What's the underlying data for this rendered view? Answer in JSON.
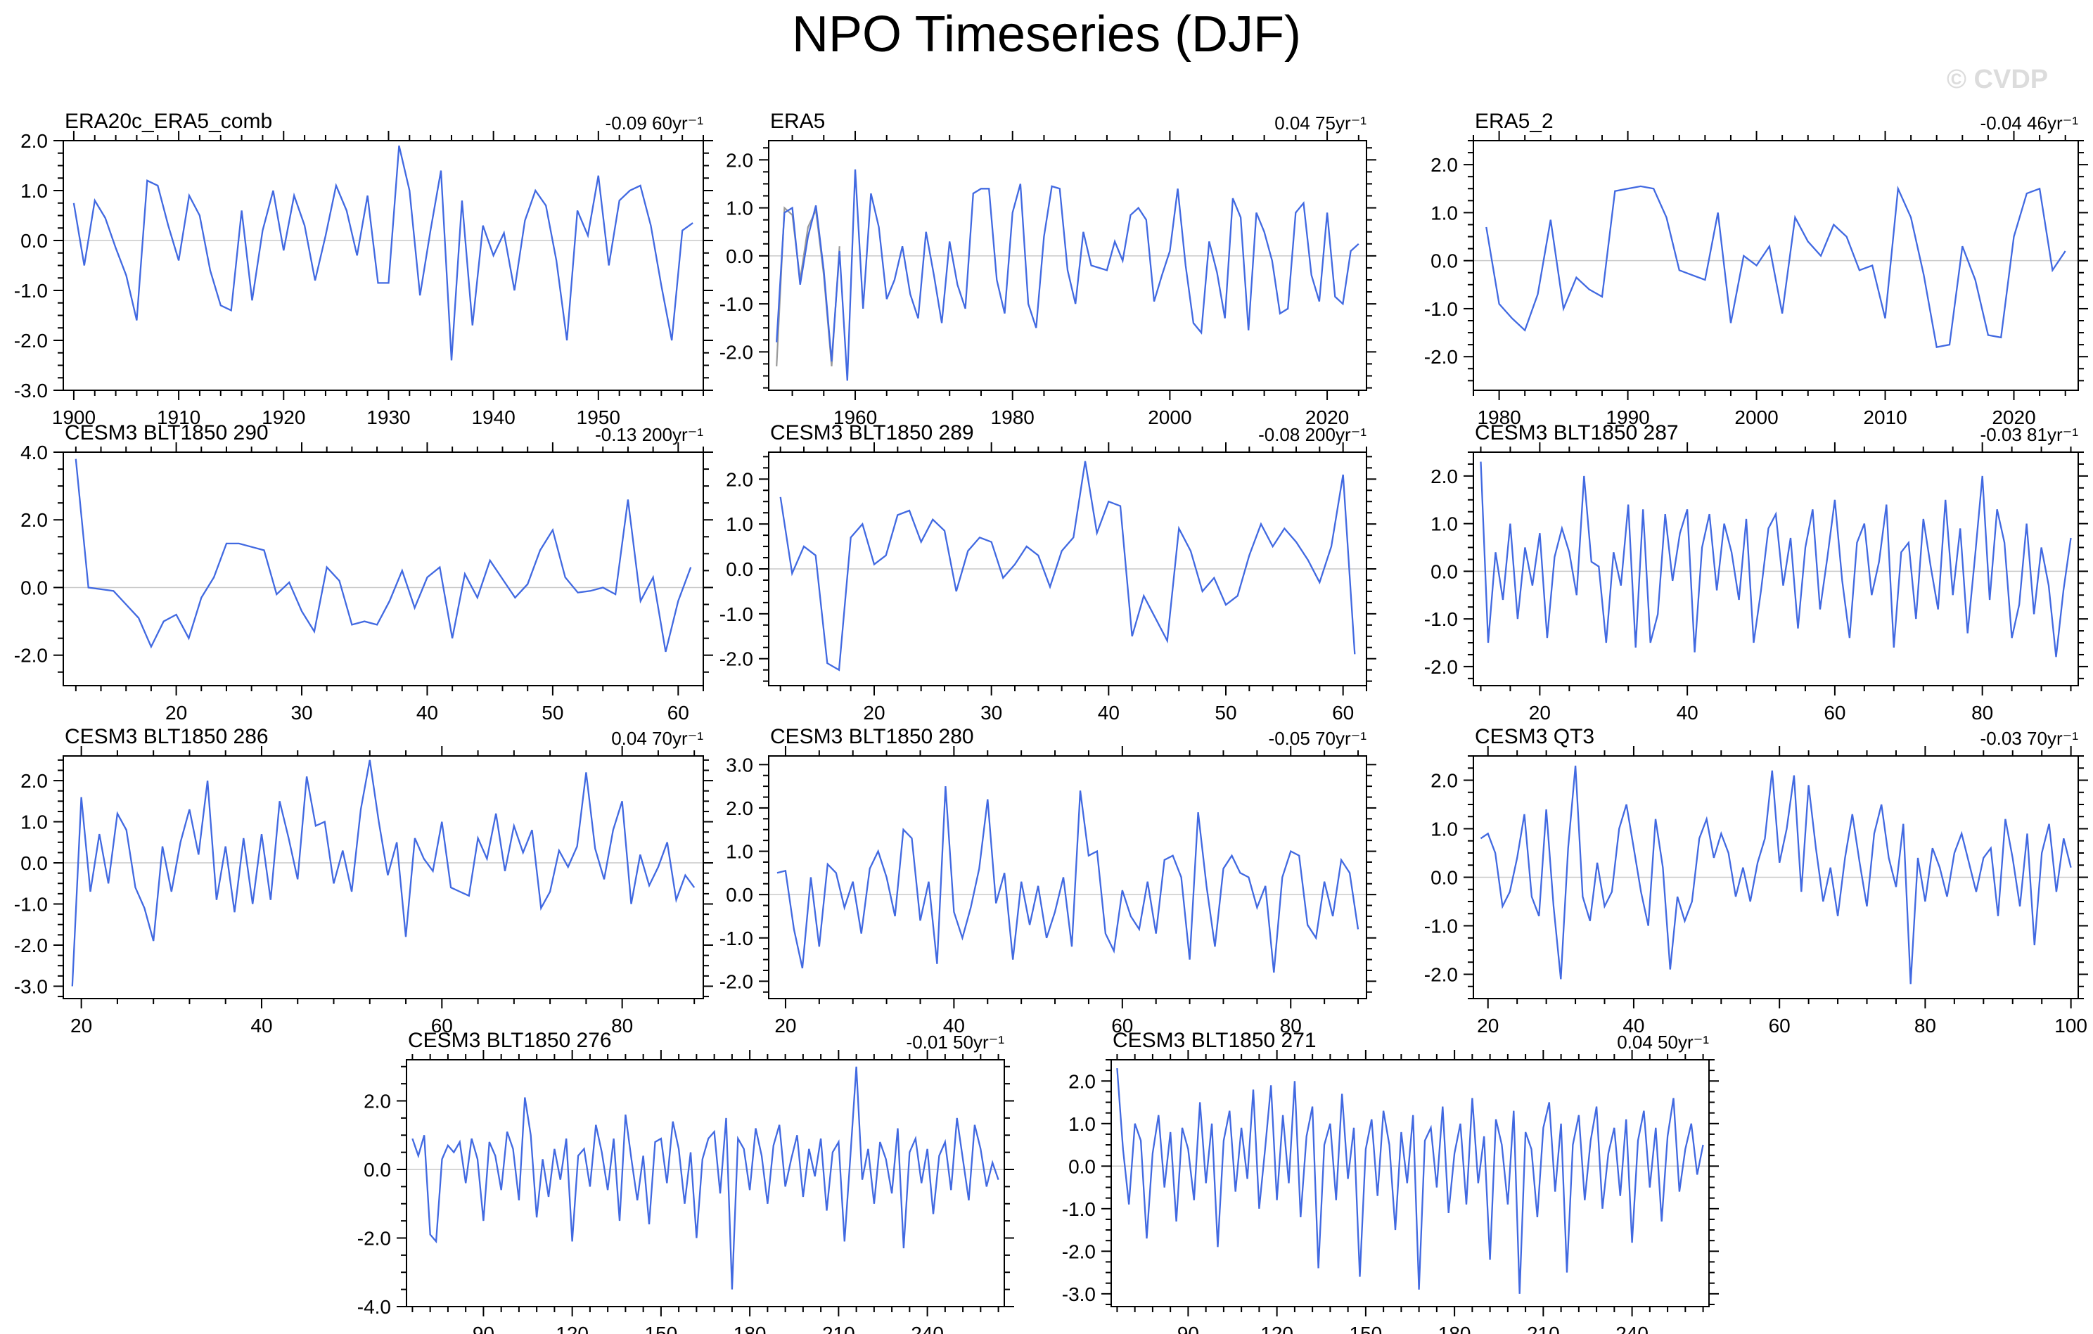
{
  "page": {
    "title": "NPO Timeseries (DJF)",
    "watermark": "© CVDP"
  },
  "colors": {
    "line": "#4169e1",
    "secondary_line": "#9a9a9a",
    "zero_line": "#c9c9c9",
    "frame": "#000000",
    "watermark": "#dcdcdc",
    "background": "#ffffff"
  },
  "chart_data": [
    {
      "type": "line",
      "title": "ERA20c_ERA5_comb",
      "stat": "-0.09 60yr⁻¹",
      "grid": {
        "row": 1,
        "col": 1
      },
      "x_start": 1900,
      "x_step": 1,
      "xlim": [
        1899,
        1960
      ],
      "ylim": [
        -3.0,
        2.0
      ],
      "x_ticks": [
        1900,
        1910,
        1920,
        1930,
        1940,
        1950
      ],
      "x_minor_step": 2,
      "y_ticks": [
        2.0,
        1.0,
        0.0,
        -1.0,
        -2.0,
        -3.0
      ],
      "y_minor_step": 0.25,
      "values": [
        0.75,
        -0.5,
        0.8,
        0.45,
        -0.15,
        -0.7,
        -1.6,
        1.2,
        1.1,
        0.3,
        -0.4,
        0.9,
        0.5,
        -0.6,
        -1.3,
        -1.4,
        0.6,
        -1.2,
        0.2,
        1.0,
        -0.2,
        0.9,
        0.3,
        -0.8,
        0.1,
        1.1,
        0.6,
        -0.3,
        0.9,
        -0.85,
        -0.85,
        1.9,
        1.0,
        -1.1,
        0.2,
        1.4,
        -2.4,
        0.8,
        -1.7,
        0.3,
        -0.3,
        0.15,
        -1.0,
        0.4,
        1.0,
        0.7,
        -0.4,
        -2.0,
        0.6,
        0.1,
        1.3,
        -0.5,
        0.8,
        1.0,
        1.1,
        0.3,
        -0.9,
        -2.0,
        0.2,
        0.35
      ]
    },
    {
      "type": "line",
      "title": "ERA5",
      "stat": "0.04 75yr⁻¹",
      "grid": {
        "row": 1,
        "col": 2
      },
      "x_start": 1950,
      "x_step": 1,
      "xlim": [
        1949,
        2025
      ],
      "ylim": [
        -2.8,
        2.4
      ],
      "x_ticks": [
        1960,
        1980,
        2000,
        2020
      ],
      "x_minor_step": 4,
      "y_ticks": [
        2.0,
        1.0,
        0.0,
        -1.0,
        -2.0
      ],
      "y_minor_step": 0.25,
      "values": [
        -1.8,
        0.9,
        1.0,
        -0.6,
        0.4,
        1.05,
        -0.3,
        -2.2,
        0.1,
        -2.6,
        1.8,
        -1.1,
        1.3,
        0.6,
        -0.9,
        -0.5,
        0.2,
        -0.8,
        -1.3,
        0.5,
        -0.4,
        -1.4,
        0.3,
        -0.6,
        -1.1,
        1.3,
        1.4,
        1.4,
        -0.5,
        -1.2,
        0.9,
        1.5,
        -1.0,
        -1.5,
        0.4,
        1.45,
        1.4,
        -0.3,
        -1.0,
        0.5,
        -0.2,
        -0.25,
        -0.3,
        0.3,
        -0.1,
        0.85,
        1.0,
        0.75,
        -0.95,
        -0.4,
        0.1,
        1.4,
        -0.2,
        -1.4,
        -1.6,
        0.3,
        -0.35,
        -1.3,
        1.2,
        0.8,
        -1.55,
        0.9,
        0.5,
        -0.1,
        -1.2,
        -1.1,
        0.9,
        1.1,
        -0.4,
        -0.95,
        0.9,
        -0.85,
        -1.0,
        0.1,
        0.25
      ],
      "secondary": {
        "x_start": 1950,
        "x_step": 1,
        "values": [
          -2.3,
          1.0,
          0.85,
          -0.5,
          0.6,
          0.95,
          -0.4,
          -2.3,
          0.2
        ]
      }
    },
    {
      "type": "line",
      "title": "ERA5_2",
      "stat": "-0.04 46yr⁻¹",
      "grid": {
        "row": 1,
        "col": 3
      },
      "x_start": 1979,
      "x_step": 1,
      "xlim": [
        1978,
        2025
      ],
      "ylim": [
        -2.7,
        2.5
      ],
      "x_ticks": [
        1980,
        1990,
        2000,
        2010,
        2020
      ],
      "x_minor_step": 2,
      "y_ticks": [
        2.0,
        1.0,
        0.0,
        -1.0,
        -2.0
      ],
      "y_minor_step": 0.25,
      "values": [
        0.7,
        -0.9,
        -1.2,
        -1.45,
        -0.7,
        0.85,
        -1.0,
        -0.35,
        -0.6,
        -0.75,
        1.45,
        1.5,
        1.55,
        1.5,
        0.9,
        -0.2,
        -0.3,
        -0.4,
        1.0,
        -1.3,
        0.1,
        -0.1,
        0.3,
        -1.1,
        0.9,
        0.4,
        0.1,
        0.75,
        0.5,
        -0.2,
        -0.1,
        -1.2,
        1.5,
        0.9,
        -0.3,
        -1.8,
        -1.75,
        0.3,
        -0.4,
        -1.55,
        -1.6,
        0.5,
        1.4,
        1.5,
        -0.2,
        0.2
      ]
    },
    {
      "type": "line",
      "title": "CESM3 BLT1850 290",
      "stat": "-0.13 200yr⁻¹",
      "grid": {
        "row": 2,
        "col": 1
      },
      "x_start": 12,
      "x_step": 1,
      "xlim": [
        11,
        62
      ],
      "ylim": [
        -2.9,
        4.0
      ],
      "x_ticks": [
        20,
        30,
        40,
        50,
        60
      ],
      "x_minor_step": 2,
      "y_ticks": [
        4.0,
        2.0,
        0.0,
        -2.0
      ],
      "y_minor_step": 0.5,
      "values": [
        3.8,
        0.0,
        -0.05,
        -0.1,
        -0.5,
        -0.9,
        -1.75,
        -1.0,
        -0.8,
        -1.5,
        -0.3,
        0.3,
        1.3,
        1.3,
        1.2,
        1.1,
        -0.2,
        0.15,
        -0.7,
        -1.3,
        0.6,
        0.2,
        -1.1,
        -1.0,
        -1.1,
        -0.4,
        0.5,
        -0.6,
        0.3,
        0.6,
        -1.5,
        0.4,
        -0.3,
        0.8,
        0.25,
        -0.3,
        0.1,
        1.1,
        1.7,
        0.3,
        -0.15,
        -0.1,
        0.0,
        -0.2,
        2.6,
        -0.4,
        0.3,
        -1.9,
        -0.4,
        0.6
      ]
    },
    {
      "type": "line",
      "title": "CESM3 BLT1850 289",
      "stat": "-0.08 200yr⁻¹",
      "grid": {
        "row": 2,
        "col": 2
      },
      "x_start": 12,
      "x_step": 1,
      "xlim": [
        11,
        62
      ],
      "ylim": [
        -2.6,
        2.6
      ],
      "x_ticks": [
        20,
        30,
        40,
        50,
        60
      ],
      "x_minor_step": 2,
      "y_ticks": [
        2.0,
        1.0,
        0.0,
        -1.0,
        -2.0
      ],
      "y_minor_step": 0.25,
      "values": [
        1.6,
        -0.1,
        0.5,
        0.3,
        -2.1,
        -2.25,
        0.7,
        1.0,
        0.1,
        0.3,
        1.2,
        1.3,
        0.6,
        1.1,
        0.85,
        -0.5,
        0.4,
        0.7,
        0.6,
        -0.2,
        0.1,
        0.5,
        0.3,
        -0.4,
        0.4,
        0.7,
        2.4,
        0.8,
        1.5,
        1.4,
        -1.5,
        -0.6,
        -1.1,
        -1.6,
        0.9,
        0.4,
        -0.5,
        -0.2,
        -0.8,
        -0.6,
        0.3,
        1.0,
        0.5,
        0.9,
        0.6,
        0.2,
        -0.3,
        0.5,
        2.1,
        -1.9
      ]
    },
    {
      "type": "line",
      "title": "CESM3 BLT1850 287",
      "stat": "-0.03 81yr⁻¹",
      "grid": {
        "row": 2,
        "col": 3
      },
      "x_start": 12,
      "x_step": 1,
      "xlim": [
        11,
        93
      ],
      "ylim": [
        -2.4,
        2.5
      ],
      "x_ticks": [
        20,
        40,
        60,
        80
      ],
      "x_minor_step": 4,
      "y_ticks": [
        2.0,
        1.0,
        0.0,
        -1.0,
        -2.0
      ],
      "y_minor_step": 0.25,
      "values": [
        2.3,
        -1.5,
        0.4,
        -0.6,
        1.0,
        -1.0,
        0.5,
        -0.3,
        0.8,
        -1.4,
        0.3,
        0.9,
        0.4,
        -0.5,
        2.0,
        0.2,
        0.1,
        -1.5,
        0.4,
        -0.3,
        1.4,
        -1.6,
        1.3,
        -1.5,
        -0.9,
        1.2,
        -0.2,
        0.8,
        1.3,
        -1.7,
        0.5,
        1.2,
        -0.4,
        1.0,
        0.4,
        -0.6,
        1.1,
        -1.5,
        -0.4,
        0.9,
        1.2,
        -0.3,
        0.7,
        -1.2,
        0.5,
        1.3,
        -0.8,
        0.3,
        1.5,
        -0.2,
        -1.4,
        0.6,
        1.0,
        -0.5,
        0.2,
        1.4,
        -1.6,
        0.4,
        0.6,
        -1.0,
        1.1,
        0.1,
        -0.8,
        1.5,
        -0.5,
        0.9,
        -1.3,
        0.3,
        2.0,
        -0.6,
        1.3,
        0.6,
        -1.4,
        -0.7,
        1.0,
        -0.9,
        0.5,
        -0.3,
        -1.8,
        -0.4,
        0.7
      ]
    },
    {
      "type": "line",
      "title": "CESM3 BLT1850 286",
      "stat": "0.04 70yr⁻¹",
      "grid": {
        "row": 3,
        "col": 1
      },
      "x_start": 19,
      "x_step": 1,
      "xlim": [
        18,
        89
      ],
      "ylim": [
        -3.3,
        2.6
      ],
      "x_ticks": [
        20,
        40,
        60,
        80
      ],
      "x_minor_step": 4,
      "y_ticks": [
        2.0,
        1.0,
        0.0,
        -1.0,
        -2.0,
        -3.0
      ],
      "y_minor_step": 0.25,
      "values": [
        -3.0,
        1.6,
        -0.7,
        0.7,
        -0.5,
        1.2,
        0.8,
        -0.6,
        -1.1,
        -1.9,
        0.4,
        -0.7,
        0.5,
        1.3,
        0.2,
        2.0,
        -0.9,
        0.4,
        -1.2,
        0.6,
        -1.0,
        0.7,
        -0.9,
        1.5,
        0.6,
        -0.4,
        2.1,
        0.9,
        1.0,
        -0.5,
        0.3,
        -0.7,
        1.3,
        2.5,
        1.0,
        -0.3,
        0.5,
        -1.8,
        0.6,
        0.1,
        -0.2,
        1.0,
        -0.6,
        -0.7,
        -0.8,
        0.6,
        0.1,
        1.2,
        -0.2,
        0.9,
        0.25,
        0.8,
        -1.1,
        -0.7,
        0.3,
        -0.1,
        0.4,
        2.2,
        0.35,
        -0.4,
        0.8,
        1.5,
        -1.0,
        0.2,
        -0.55,
        -0.1,
        0.5,
        -0.9,
        -0.3,
        -0.6
      ]
    },
    {
      "type": "line",
      "title": "CESM3 BLT1850 280",
      "stat": "-0.05 70yr⁻¹",
      "grid": {
        "row": 3,
        "col": 2
      },
      "x_start": 19,
      "x_step": 1,
      "xlim": [
        18,
        89
      ],
      "ylim": [
        -2.4,
        3.2
      ],
      "x_ticks": [
        20,
        40,
        60,
        80
      ],
      "x_minor_step": 4,
      "y_ticks": [
        3.0,
        2.0,
        1.0,
        0.0,
        -1.0,
        -2.0
      ],
      "y_minor_step": 0.25,
      "values": [
        0.5,
        0.55,
        -0.8,
        -1.7,
        0.4,
        -1.2,
        0.7,
        0.5,
        -0.3,
        0.3,
        -0.9,
        0.6,
        1.0,
        0.4,
        -0.5,
        1.5,
        1.3,
        -0.6,
        0.3,
        -1.6,
        2.5,
        -0.4,
        -1.0,
        -0.3,
        0.6,
        2.2,
        -0.2,
        0.5,
        -1.5,
        0.3,
        -0.7,
        0.2,
        -1.0,
        -0.4,
        0.4,
        -1.2,
        2.4,
        0.9,
        1.0,
        -0.9,
        -1.3,
        0.1,
        -0.5,
        -0.8,
        0.3,
        -0.9,
        0.8,
        0.9,
        0.4,
        -1.5,
        1.9,
        0.2,
        -1.2,
        0.6,
        0.9,
        0.5,
        0.4,
        -0.3,
        0.2,
        -1.8,
        0.4,
        1.0,
        0.9,
        -0.7,
        -1.0,
        0.3,
        -0.5,
        0.8,
        0.5,
        -0.8
      ]
    },
    {
      "type": "line",
      "title": "CESM3 QT3",
      "stat": "-0.03 70yr⁻¹",
      "grid": {
        "row": 3,
        "col": 3
      },
      "x_start": 19,
      "x_step": 1,
      "xlim": [
        18,
        101
      ],
      "ylim": [
        -2.5,
        2.5
      ],
      "x_ticks": [
        20,
        40,
        60,
        80,
        100
      ],
      "x_minor_step": 4,
      "y_ticks": [
        2.0,
        1.0,
        0.0,
        -1.0,
        -2.0
      ],
      "y_minor_step": 0.25,
      "values": [
        0.8,
        0.9,
        0.5,
        -0.6,
        -0.3,
        0.4,
        1.3,
        -0.4,
        -0.8,
        1.4,
        -0.6,
        -2.1,
        0.6,
        2.3,
        -0.4,
        -0.9,
        0.3,
        -0.6,
        -0.3,
        1.0,
        1.5,
        0.6,
        -0.3,
        -1.0,
        1.2,
        0.2,
        -1.9,
        -0.4,
        -0.9,
        -0.5,
        0.8,
        1.2,
        0.4,
        0.9,
        0.5,
        -0.4,
        0.2,
        -0.5,
        0.3,
        0.8,
        2.2,
        0.3,
        1.0,
        2.1,
        -0.3,
        1.9,
        0.6,
        -0.5,
        0.2,
        -0.8,
        0.4,
        1.3,
        0.3,
        -0.6,
        0.9,
        1.5,
        0.4,
        -0.2,
        1.1,
        -2.2,
        0.4,
        -0.5,
        0.6,
        0.2,
        -0.4,
        0.5,
        0.9,
        0.3,
        -0.3,
        0.4,
        0.6,
        -0.8,
        1.2,
        0.4,
        -0.6,
        0.9,
        -1.4,
        0.5,
        1.1,
        -0.3,
        0.8,
        0.2
      ]
    },
    {
      "type": "line",
      "title": "CESM3 BLT1850 276",
      "stat": "-0.01 50yr⁻¹",
      "grid": {
        "row": 4,
        "col": 1
      },
      "x_start": 66,
      "x_step": 2,
      "xlim": [
        64,
        266
      ],
      "ylim": [
        -4.0,
        3.2
      ],
      "x_ticks": [
        90,
        120,
        150,
        180,
        210,
        240
      ],
      "x_minor_step": 6,
      "y_ticks": [
        2.0,
        0.0,
        -2.0,
        -4.0
      ],
      "y_minor_step": 0.5,
      "values": [
        0.9,
        0.4,
        1.0,
        -1.9,
        -2.1,
        0.3,
        0.7,
        0.5,
        0.8,
        -0.4,
        0.9,
        0.3,
        -1.5,
        0.8,
        0.4,
        -0.6,
        1.1,
        0.6,
        -0.9,
        2.1,
        1.0,
        -1.4,
        0.3,
        -0.8,
        0.6,
        -0.3,
        0.9,
        -2.1,
        0.4,
        0.6,
        -0.5,
        1.3,
        0.5,
        -0.6,
        0.9,
        -1.5,
        1.6,
        0.3,
        -0.9,
        0.4,
        -1.6,
        0.8,
        0.9,
        -0.4,
        1.4,
        0.6,
        -1.0,
        0.5,
        -2.0,
        0.3,
        0.9,
        1.1,
        -0.7,
        1.5,
        -3.5,
        0.9,
        0.6,
        -0.6,
        1.2,
        0.4,
        -1.0,
        0.7,
        1.3,
        -0.5,
        0.3,
        1.0,
        -0.8,
        0.6,
        -0.2,
        0.9,
        -1.2,
        0.5,
        0.8,
        -2.1,
        0.4,
        3.0,
        -0.3,
        0.6,
        -1.0,
        0.8,
        0.3,
        -0.7,
        1.2,
        -2.3,
        0.5,
        0.9,
        -0.4,
        0.6,
        -1.3,
        0.4,
        0.8,
        -0.6,
        1.5,
        0.3,
        -0.9,
        1.3,
        0.6,
        -0.5,
        0.2,
        -0.3
      ]
    },
    {
      "type": "line",
      "title": "CESM3 BLT1850 271",
      "stat": "0.04 50yr⁻¹",
      "grid": {
        "row": 4,
        "col": 2
      },
      "x_start": 66,
      "x_step": 2,
      "xlim": [
        64,
        266
      ],
      "ylim": [
        -3.3,
        2.5
      ],
      "x_ticks": [
        90,
        120,
        150,
        180,
        210,
        240
      ],
      "x_minor_step": 6,
      "y_ticks": [
        2.0,
        1.0,
        0.0,
        -1.0,
        -2.0,
        -3.0
      ],
      "y_minor_step": 0.25,
      "values": [
        2.3,
        0.4,
        -0.9,
        1.0,
        0.6,
        -1.7,
        0.3,
        1.2,
        -0.5,
        0.8,
        -1.3,
        0.9,
        0.4,
        -0.8,
        1.5,
        -0.4,
        1.0,
        -1.9,
        0.6,
        1.3,
        -0.6,
        0.9,
        -0.3,
        1.8,
        -1.0,
        0.4,
        1.9,
        -0.8,
        1.2,
        -0.4,
        2.0,
        -1.2,
        0.7,
        1.4,
        -2.4,
        0.5,
        1.0,
        -0.8,
        1.7,
        -0.3,
        0.9,
        -2.6,
        0.4,
        1.1,
        -0.7,
        1.3,
        0.5,
        -1.5,
        0.8,
        -0.4,
        1.2,
        -2.9,
        0.6,
        0.9,
        -0.5,
        1.4,
        -1.1,
        0.3,
        1.0,
        -0.9,
        1.6,
        -0.4,
        0.7,
        -2.2,
        1.1,
        0.5,
        -0.9,
        1.3,
        -3.0,
        0.8,
        0.4,
        -1.2,
        0.9,
        1.5,
        -0.6,
        1.0,
        -2.5,
        0.5,
        1.2,
        -0.8,
        0.6,
        1.4,
        -1.0,
        0.3,
        0.9,
        -0.7,
        1.1,
        -1.8,
        0.6,
        1.3,
        -0.5,
        0.9,
        -1.3,
        0.7,
        1.6,
        -0.6,
        0.4,
        1.0,
        -0.2,
        0.5
      ]
    }
  ]
}
